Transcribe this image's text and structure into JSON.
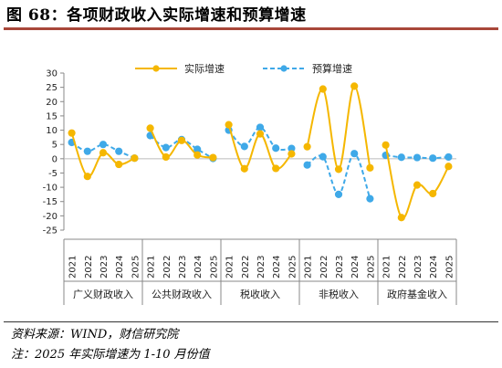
{
  "figure": {
    "title": "图 68：各项财政收入实际增速和预算增速",
    "source_note": "资料来源：WIND，财信研究院",
    "remark_note": "注：2025 年实际增速为 1-10 月份值"
  },
  "chart_data": {
    "type": "line",
    "ylim": [
      -25,
      30
    ],
    "yticks": [
      30,
      25,
      20,
      15,
      10,
      5,
      0,
      -5,
      -10,
      -15,
      -20,
      -25
    ],
    "grid": false,
    "legend_position": "top",
    "colors": {
      "actual": "#f5b700",
      "budget": "#3fa9e8"
    },
    "groups": [
      {
        "name": "广义财政收入",
        "years": [
          "2021",
          "2022",
          "2023",
          "2024",
          "2025"
        ]
      },
      {
        "name": "公共财政收入",
        "years": [
          "2021",
          "2022",
          "2023",
          "2024",
          "2025"
        ]
      },
      {
        "name": "税收收入",
        "years": [
          "2021",
          "2022",
          "2023",
          "2024",
          "2025"
        ]
      },
      {
        "name": "非税收入",
        "years": [
          "2021",
          "2022",
          "2023",
          "2024",
          "2025"
        ]
      },
      {
        "name": "政府基金收入",
        "years": [
          "2021",
          "2022",
          "2023",
          "2024",
          "2025"
        ]
      }
    ],
    "series": [
      {
        "name": "实际增速",
        "style": "solid",
        "values": [
          [
            9,
            -6.2,
            2.1,
            -2.0,
            0.2
          ],
          [
            10.7,
            0.6,
            6.4,
            1.3,
            0.4
          ],
          [
            11.9,
            -3.5,
            8.7,
            -3.4,
            1.7
          ],
          [
            4.2,
            24.4,
            -3.7,
            25.4,
            -3.2
          ],
          [
            4.8,
            -20.6,
            -9.2,
            -12.2,
            -2.7
          ]
        ]
      },
      {
        "name": "预算增速",
        "style": "dashed",
        "values": [
          [
            5.7,
            2.6,
            5.0,
            2.6,
            0.2
          ],
          [
            8.1,
            3.9,
            6.7,
            3.3,
            0.1
          ],
          [
            10.0,
            4.3,
            11.0,
            3.7,
            3.6
          ],
          [
            -2.2,
            0.7,
            -12.5,
            1.8,
            -14.0
          ],
          [
            1.2,
            0.5,
            0.4,
            0.2,
            0.6
          ]
        ]
      }
    ]
  }
}
